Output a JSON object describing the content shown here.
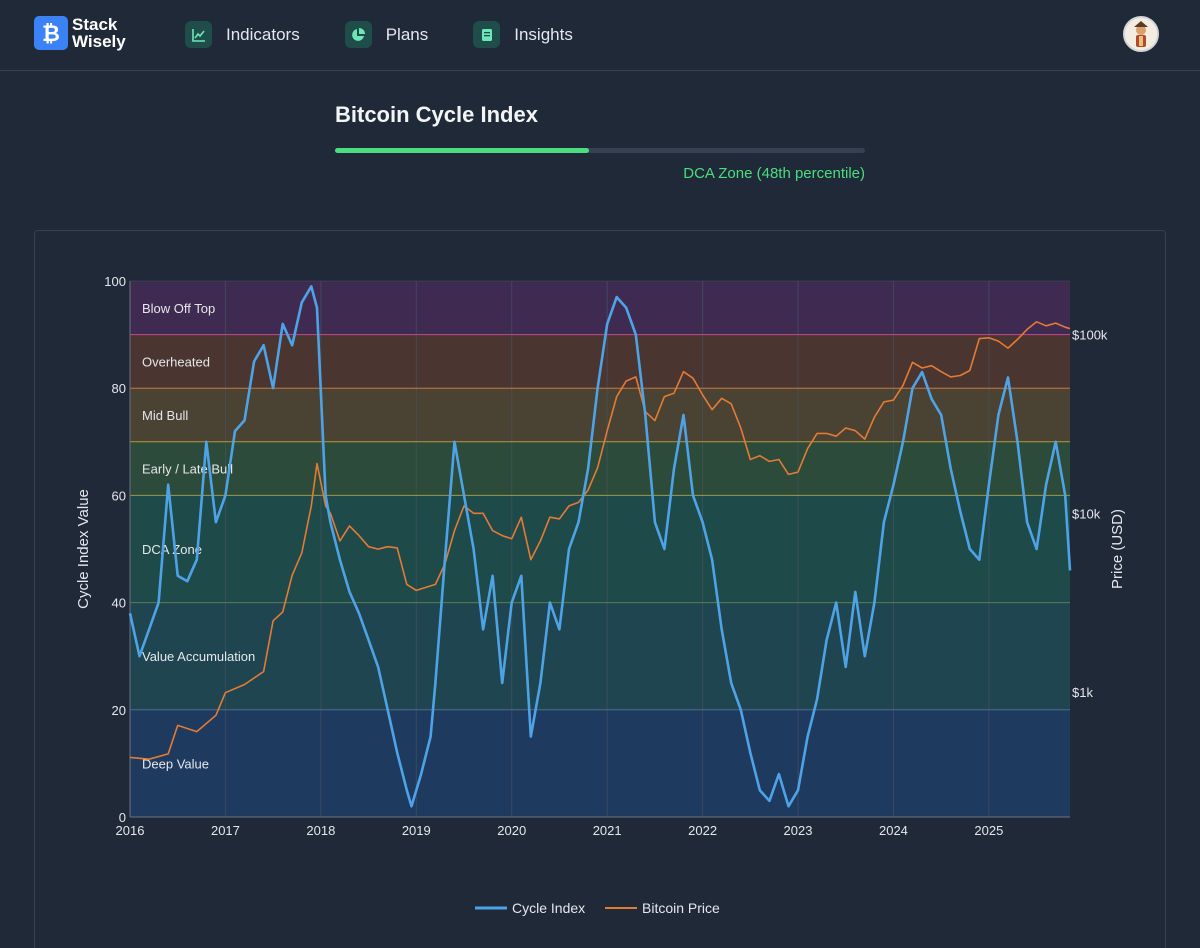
{
  "brand": {
    "name_line1": "Stack",
    "name_line2": "Wisely"
  },
  "nav": [
    {
      "label": "Indicators",
      "icon": "line-chart-icon"
    },
    {
      "label": "Plans",
      "icon": "pie-chart-icon"
    },
    {
      "label": "Insights",
      "icon": "book-icon"
    }
  ],
  "page": {
    "title": "Bitcoin Cycle Index",
    "progress_percent": 48,
    "zone_label": "DCA Zone (48th percentile)"
  },
  "colors": {
    "cycle_index": "#4ea3e6",
    "bitcoin_price": "#e47b35",
    "progress": "#4ade80",
    "brand": "#3b82f6"
  },
  "chart_data": {
    "type": "line",
    "title": "",
    "xlabel": "",
    "ylabel": "Cycle Index Value",
    "y2label": "Price (USD)",
    "ylim": [
      0,
      100
    ],
    "y2lim_log10": [
      2.3,
      5.3
    ],
    "xlim": [
      2016,
      2025.85
    ],
    "x_ticks": [
      "2016",
      "2017",
      "2018",
      "2019",
      "2020",
      "2021",
      "2022",
      "2023",
      "2024",
      "2025"
    ],
    "y_ticks": [
      0,
      20,
      40,
      60,
      80,
      100
    ],
    "y2_ticks": [
      {
        "label": "$1k",
        "value": 1000
      },
      {
        "label": "$10k",
        "value": 10000
      },
      {
        "label": "$100k",
        "value": 100000
      }
    ],
    "grid": true,
    "legend": "bottom-center",
    "zones": [
      {
        "name": "Deep Value",
        "from": 0,
        "to": 20,
        "color": "#1e3a5f"
      },
      {
        "name": "Value Accumulation",
        "from": 20,
        "to": 40,
        "color": "#1f4550"
      },
      {
        "name": "DCA Zone",
        "from": 40,
        "to": 60,
        "color": "#1f4a4a"
      },
      {
        "name": "Early / Late Bull",
        "from": 60,
        "to": 70,
        "color": "#2c4b3a"
      },
      {
        "name": "Mid Bull",
        "from": 70,
        "to": 80,
        "color": "#4a4233"
      },
      {
        "name": "Overheated",
        "from": 80,
        "to": 90,
        "color": "#4a3530"
      },
      {
        "name": "Blow Off Top",
        "from": 90,
        "to": 100,
        "color": "#3f2b52"
      }
    ],
    "zone_lines": [
      {
        "value": 20,
        "color": "#4b6b8a"
      },
      {
        "value": 40,
        "color": "#5a7a5a"
      },
      {
        "value": 60,
        "color": "#9a9a4a"
      },
      {
        "value": 70,
        "color": "#b49a3c"
      },
      {
        "value": 80,
        "color": "#c77a3c"
      },
      {
        "value": 90,
        "color": "#c04a8a"
      }
    ],
    "series": [
      {
        "name": "Cycle Index",
        "x": [
          2016.0,
          2016.1,
          2016.2,
          2016.3,
          2016.4,
          2016.5,
          2016.6,
          2016.7,
          2016.8,
          2016.9,
          2017.0,
          2017.1,
          2017.2,
          2017.3,
          2017.4,
          2017.5,
          2017.6,
          2017.7,
          2017.8,
          2017.9,
          2017.96,
          2018.05,
          2018.1,
          2018.2,
          2018.3,
          2018.4,
          2018.5,
          2018.6,
          2018.7,
          2018.8,
          2018.9,
          2018.95,
          2019.05,
          2019.15,
          2019.2,
          2019.3,
          2019.4,
          2019.5,
          2019.55,
          2019.6,
          2019.7,
          2019.8,
          2019.9,
          2020.0,
          2020.1,
          2020.2,
          2020.3,
          2020.4,
          2020.5,
          2020.6,
          2020.7,
          2020.8,
          2020.9,
          2021.0,
          2021.1,
          2021.2,
          2021.3,
          2021.4,
          2021.5,
          2021.6,
          2021.7,
          2021.8,
          2021.9,
          2022.0,
          2022.1,
          2022.2,
          2022.3,
          2022.4,
          2022.5,
          2022.6,
          2022.7,
          2022.8,
          2022.9,
          2023.0,
          2023.1,
          2023.2,
          2023.3,
          2023.4,
          2023.5,
          2023.6,
          2023.7,
          2023.8,
          2023.9,
          2024.0,
          2024.1,
          2024.2,
          2024.3,
          2024.4,
          2024.5,
          2024.6,
          2024.7,
          2024.8,
          2024.9,
          2025.0,
          2025.1,
          2025.2,
          2025.3,
          2025.4,
          2025.5,
          2025.6,
          2025.7,
          2025.8,
          2025.85
        ],
        "y": [
          38,
          30,
          35,
          40,
          62,
          45,
          44,
          48,
          70,
          55,
          60,
          72,
          74,
          85,
          88,
          80,
          92,
          88,
          96,
          99,
          95,
          60,
          55,
          48,
          42,
          38,
          33,
          28,
          20,
          12,
          5,
          2,
          8,
          15,
          25,
          48,
          70,
          60,
          55,
          50,
          35,
          45,
          25,
          40,
          45,
          15,
          25,
          40,
          35,
          50,
          55,
          65,
          80,
          92,
          97,
          95,
          90,
          75,
          55,
          50,
          65,
          75,
          60,
          55,
          48,
          35,
          25,
          20,
          12,
          5,
          3,
          8,
          2,
          5,
          15,
          22,
          33,
          40,
          28,
          42,
          30,
          40,
          55,
          62,
          70,
          80,
          83,
          78,
          75,
          65,
          57,
          50,
          48,
          62,
          75,
          82,
          70,
          55,
          50,
          62,
          70,
          60,
          46
        ]
      },
      {
        "name": "Bitcoin Price",
        "x": [
          2016.0,
          2016.2,
          2016.4,
          2016.5,
          2016.7,
          2016.9,
          2017.0,
          2017.2,
          2017.4,
          2017.5,
          2017.6,
          2017.7,
          2017.8,
          2017.9,
          2017.96,
          2018.05,
          2018.1,
          2018.2,
          2018.3,
          2018.4,
          2018.5,
          2018.6,
          2018.7,
          2018.8,
          2018.9,
          2019.0,
          2019.2,
          2019.3,
          2019.4,
          2019.5,
          2019.6,
          2019.7,
          2019.8,
          2019.9,
          2020.0,
          2020.1,
          2020.2,
          2020.3,
          2020.4,
          2020.5,
          2020.6,
          2020.7,
          2020.8,
          2020.9,
          2021.0,
          2021.1,
          2021.2,
          2021.3,
          2021.4,
          2021.5,
          2021.6,
          2021.7,
          2021.8,
          2021.9,
          2022.0,
          2022.1,
          2022.2,
          2022.3,
          2022.4,
          2022.5,
          2022.6,
          2022.7,
          2022.8,
          2022.9,
          2023.0,
          2023.1,
          2023.2,
          2023.3,
          2023.4,
          2023.5,
          2023.6,
          2023.7,
          2023.8,
          2023.9,
          2024.0,
          2024.1,
          2024.2,
          2024.3,
          2024.4,
          2024.5,
          2024.6,
          2024.7,
          2024.8,
          2024.9,
          2025.0,
          2025.1,
          2025.2,
          2025.3,
          2025.4,
          2025.5,
          2025.6,
          2025.7,
          2025.8,
          2025.85
        ],
        "y": [
          430,
          420,
          450,
          650,
          600,
          740,
          990,
          1100,
          1300,
          2500,
          2800,
          4500,
          6000,
          11000,
          19000,
          11000,
          10000,
          7000,
          8500,
          7500,
          6500,
          6300,
          6500,
          6400,
          4000,
          3700,
          4000,
          5200,
          8000,
          11000,
          10000,
          10000,
          8000,
          7500,
          7200,
          9500,
          5500,
          7000,
          9500,
          9300,
          11000,
          11500,
          13500,
          18000,
          29000,
          45000,
          55000,
          58000,
          37000,
          33000,
          45000,
          47000,
          62000,
          57000,
          46000,
          38000,
          44000,
          41000,
          30000,
          20000,
          21000,
          19500,
          20000,
          16500,
          17000,
          23000,
          28000,
          28000,
          27000,
          30000,
          29000,
          26000,
          34500,
          42000,
          43000,
          52000,
          70000,
          65000,
          67000,
          62000,
          58000,
          59000,
          63000,
          95000,
          96000,
          92000,
          84000,
          94000,
          107000,
          118000,
          112000,
          116000,
          110000,
          108000
        ]
      }
    ]
  }
}
